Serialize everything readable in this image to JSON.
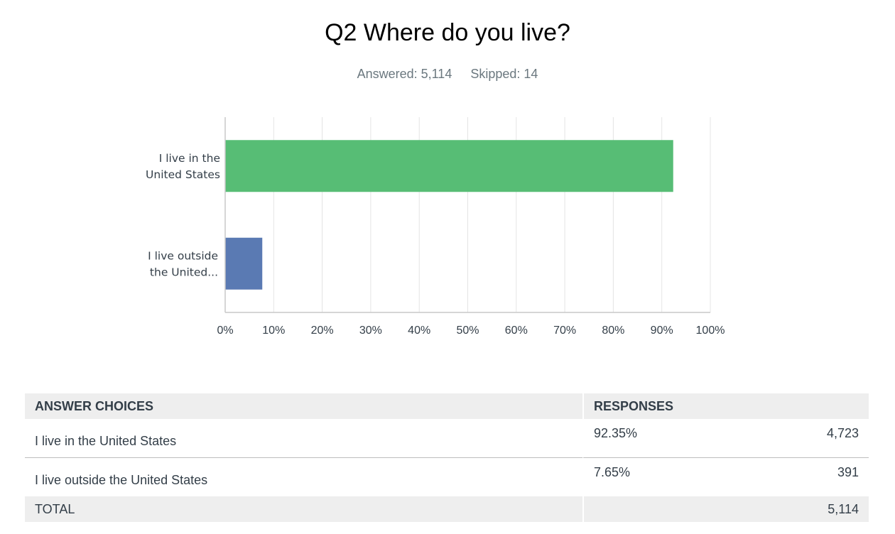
{
  "header": {
    "title": "Q2 Where do you live?",
    "answered": "Answered: 5,114",
    "skipped": "Skipped: 14"
  },
  "chart_data": {
    "type": "bar",
    "orientation": "horizontal",
    "categories": [
      "I live in the United States",
      "I live outside the United States"
    ],
    "category_display": [
      [
        "I live in the",
        "United States"
      ],
      [
        "I live outside",
        "the United..."
      ]
    ],
    "values": [
      92.35,
      7.65
    ],
    "colors": [
      "#57bd75",
      "#5a7ab3"
    ],
    "xlim": [
      0,
      100
    ],
    "xticks": [
      "0%",
      "10%",
      "20%",
      "30%",
      "40%",
      "50%",
      "60%",
      "70%",
      "80%",
      "90%",
      "100%"
    ],
    "grid": true
  },
  "table": {
    "headers": {
      "choices": "ANSWER CHOICES",
      "responses": "RESPONSES"
    },
    "rows": [
      {
        "choice": "I live in the United States",
        "percent": "92.35%",
        "count": "4,723"
      },
      {
        "choice": "I live outside the United States",
        "percent": "7.65%",
        "count": "391"
      }
    ],
    "total_label": "TOTAL",
    "total_count": "5,114"
  }
}
